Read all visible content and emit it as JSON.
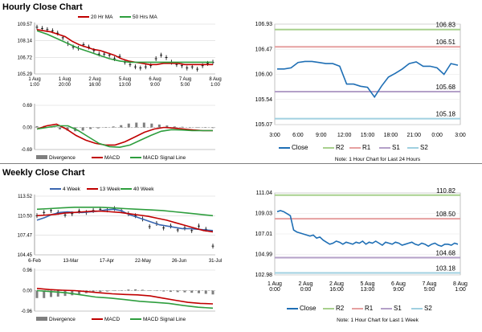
{
  "sections": {
    "hourly_title": "Hourly Close Chart",
    "weekly_title": "Weekly Close Chart"
  },
  "chart_data": [
    {
      "id": "hourly_price",
      "type": "line",
      "ylim": [
        105.29,
        109.57
      ],
      "yticks": [
        "109.57",
        "108.14",
        "106.72",
        "105.29"
      ],
      "xticks": [
        "1 Aug\n1:00",
        "1 Aug\n20:00",
        "2 Aug\n16:00",
        "5 Aug\n13:00",
        "6 Aug\n9:00",
        "7 Aug\n5:00",
        "8 Aug\n1:00"
      ],
      "legend": [
        "20 Hr MA",
        "50 Hrs MA"
      ],
      "series": [
        {
          "name": "Close",
          "color": "#000000",
          "style": "candles",
          "values": [
            109.3,
            109.2,
            109.1,
            109.0,
            108.8,
            108.4,
            107.9,
            107.6,
            107.5,
            107.8,
            107.6,
            107.3,
            107.0,
            107.0,
            106.9,
            106.6,
            106.8,
            106.3,
            106.1,
            105.9,
            105.8,
            105.9,
            106.0,
            106.6,
            106.9,
            106.7,
            106.3,
            106.1,
            106.0,
            105.8,
            105.9,
            105.7,
            106.0,
            106.2,
            106.3
          ]
        },
        {
          "name": "20 Hr MA",
          "color": "#c00000",
          "values": [
            109.1,
            109.0,
            108.9,
            108.7,
            108.5,
            108.1,
            107.8,
            107.6,
            107.4,
            107.3,
            107.1,
            106.9,
            106.6,
            106.4,
            106.3,
            106.2,
            106.1,
            106.1,
            106.2,
            106.2,
            106.2,
            106.1,
            106.1,
            106.1,
            106.1,
            106.1
          ]
        },
        {
          "name": "50 Hrs MA",
          "color": "#2e9e3e",
          "values": [
            109.0,
            108.7,
            108.3,
            107.9,
            107.5,
            107.2,
            106.9,
            106.6,
            106.4,
            106.3,
            106.3,
            106.3,
            106.3,
            106.3,
            106.3,
            106.3,
            106.3,
            106.3
          ]
        }
      ]
    },
    {
      "id": "hourly_macd",
      "type": "line",
      "ylim": [
        -0.69,
        0.69
      ],
      "yticks": [
        "0.69",
        "0.00",
        "-0.69"
      ],
      "legend": [
        "Divergence",
        "MACD",
        "MACD Signal Line"
      ],
      "series": [
        {
          "name": "Divergence",
          "color": "#7f7f7f",
          "style": "bars",
          "values": [
            0.04,
            0.05,
            0.03,
            -0.06,
            -0.1,
            -0.12,
            -0.1,
            -0.05,
            -0.03,
            0.0,
            0.03,
            0.07,
            0.12,
            0.15,
            0.15,
            0.12,
            0.09,
            0.06,
            0.03,
            0.02,
            0.01,
            0.0,
            -0.01,
            -0.02
          ]
        },
        {
          "name": "MACD",
          "color": "#c00000",
          "values": [
            -0.05,
            0.05,
            0.1,
            -0.05,
            -0.25,
            -0.4,
            -0.5,
            -0.55,
            -0.55,
            -0.45,
            -0.3,
            -0.15,
            -0.05,
            0.0,
            -0.02,
            -0.05,
            -0.08,
            -0.1,
            -0.1
          ]
        },
        {
          "name": "MACD Signal Line",
          "color": "#2e9e3e",
          "values": [
            -0.05,
            0.0,
            0.05,
            0.05,
            -0.1,
            -0.3,
            -0.5,
            -0.6,
            -0.62,
            -0.55,
            -0.4,
            -0.25,
            -0.12,
            -0.07,
            -0.08,
            -0.1,
            -0.1,
            -0.1
          ]
        }
      ]
    },
    {
      "id": "hourly_levels",
      "type": "line",
      "ylim": [
        105.07,
        106.93
      ],
      "yticks": [
        "106.93",
        "106.47",
        "106.00",
        "105.54",
        "105.07"
      ],
      "xticks": [
        "3:00",
        "6:00",
        "9:00",
        "12:00",
        "15:00",
        "18:00",
        "21:00",
        "0:00",
        "3:00"
      ],
      "legend": [
        "Close",
        "R2",
        "R1",
        "S1",
        "S2"
      ],
      "levels": [
        {
          "name": "R2",
          "value": 106.83,
          "label": "106.83",
          "color": "#a8d08d"
        },
        {
          "name": "R1",
          "value": 106.51,
          "label": "106.51",
          "color": "#e6a0a0"
        },
        {
          "name": "S1",
          "value": 105.68,
          "label": "105.68",
          "color": "#b4a0c8"
        },
        {
          "name": "S2",
          "value": 105.18,
          "label": "105.18",
          "color": "#a0d0e0"
        }
      ],
      "series": [
        {
          "name": "Close",
          "color": "#1f6fb5",
          "values": [
            106.1,
            106.1,
            106.12,
            106.22,
            106.24,
            106.24,
            106.22,
            106.2,
            106.2,
            106.15,
            105.82,
            105.82,
            105.78,
            105.76,
            105.58,
            105.78,
            105.95,
            106.02,
            106.1,
            106.2,
            106.23,
            106.15,
            106.15,
            106.12,
            106.0,
            106.2,
            106.17
          ]
        }
      ],
      "note": "Note: 1 Hour Chart for Last 24 Hours"
    },
    {
      "id": "weekly_price",
      "type": "line",
      "ylim": [
        104.45,
        113.52
      ],
      "yticks": [
        "113.52",
        "110.50",
        "107.47",
        "104.45"
      ],
      "xticks": [
        "6-Feb",
        "13-Mar",
        "17-Apr",
        "22-May",
        "26-Jun",
        "31-Jul"
      ],
      "legend": [
        "4 Week",
        "13 Week",
        "40 Week"
      ],
      "series": [
        {
          "name": "Close",
          "color": "#000000",
          "style": "candles",
          "values": [
            110.5,
            111.0,
            111.3,
            111.0,
            110.6,
            110.8,
            111.2,
            111.0,
            111.3,
            111.5,
            111.4,
            111.6,
            111.3,
            110.8,
            110.5,
            110.0,
            108.8,
            109.3,
            108.6,
            108.9,
            108.3,
            108.6,
            108.2,
            108.9,
            108.4,
            105.8
          ]
        },
        {
          "name": "4 Week",
          "color": "#3a66b0",
          "values": [
            109.8,
            110.2,
            110.7,
            111.0,
            111.1,
            111.0,
            111.0,
            111.1,
            111.2,
            111.4,
            111.5,
            111.3,
            110.7,
            110.3,
            109.9,
            109.5,
            109.1,
            108.9,
            108.7,
            108.5,
            108.5,
            108.4,
            108.3,
            108.2
          ]
        },
        {
          "name": "13 Week",
          "color": "#c00000",
          "values": [
            110.5,
            110.6,
            110.7,
            110.9,
            111.0,
            111.1,
            111.2,
            111.2,
            111.1,
            111.0,
            110.8,
            110.6,
            110.4,
            110.1,
            109.8,
            109.4,
            109.0,
            108.6,
            108.2,
            108.0
          ]
        },
        {
          "name": "40 Week",
          "color": "#2e9e3e",
          "values": [
            111.5,
            111.6,
            111.7,
            111.8,
            111.8,
            111.8,
            111.7,
            111.6,
            111.5,
            111.4,
            111.3,
            111.1,
            110.9,
            110.7,
            110.5
          ]
        }
      ]
    },
    {
      "id": "weekly_macd",
      "type": "line",
      "ylim": [
        -0.96,
        0.96
      ],
      "yticks": [
        "0.96",
        "0.00",
        "-0.96"
      ],
      "legend": [
        "Divergence",
        "MACD",
        "MACD Signal Line"
      ],
      "series": [
        {
          "name": "Divergence",
          "color": "#7f7f7f",
          "style": "bars",
          "values": [
            -0.35,
            -0.35,
            -0.3,
            -0.28,
            -0.25,
            -0.22,
            -0.18,
            -0.12,
            -0.08,
            -0.06,
            -0.04,
            -0.02,
            0.02,
            0.05,
            0.06,
            0.04,
            0.02,
            -0.02,
            -0.04,
            -0.06,
            -0.07,
            -0.08,
            -0.1,
            -0.12,
            -0.15,
            -0.18
          ]
        },
        {
          "name": "MACD",
          "color": "#c00000",
          "values": [
            0.1,
            0.05,
            0.02,
            0.0,
            -0.05,
            -0.1,
            -0.15,
            -0.18,
            -0.2,
            -0.25,
            -0.35,
            -0.45,
            -0.55,
            -0.6,
            -0.62
          ]
        },
        {
          "name": "MACD Signal Line",
          "color": "#2e9e3e",
          "values": [
            0.0,
            -0.05,
            -0.1,
            -0.2,
            -0.3,
            -0.35,
            -0.42,
            -0.5,
            -0.55,
            -0.6,
            -0.7,
            -0.78,
            -0.82
          ]
        }
      ]
    },
    {
      "id": "weekly_levels",
      "type": "line",
      "ylim": [
        102.98,
        111.04
      ],
      "yticks": [
        "111.04",
        "109.03",
        "107.01",
        "104.99",
        "102.98"
      ],
      "xticks": [
        "1 Aug\n0:00",
        "2 Aug\n0:00",
        "2 Aug\n16:00",
        "5 Aug\n13:00",
        "6 Aug\n9:00",
        "7 Aug\n5:00",
        "8 Aug\n1:00"
      ],
      "legend": [
        "Close",
        "R2",
        "R1",
        "S1",
        "S2"
      ],
      "levels": [
        {
          "name": "R2",
          "value": 110.82,
          "label": "110.82",
          "color": "#a8d08d"
        },
        {
          "name": "R1",
          "value": 108.5,
          "label": "108.50",
          "color": "#e6a0a0"
        },
        {
          "name": "S1",
          "value": 104.68,
          "label": "104.68",
          "color": "#b4a0c8"
        },
        {
          "name": "S2",
          "value": 103.18,
          "label": "103.18",
          "color": "#a0d0e0"
        }
      ],
      "series": [
        {
          "name": "Close",
          "color": "#1f6fb5",
          "values": [
            109.2,
            109.3,
            109.2,
            109.0,
            108.8,
            107.4,
            107.2,
            107.1,
            107.0,
            106.9,
            106.8,
            106.9,
            106.6,
            106.7,
            106.4,
            106.2,
            106.0,
            106.1,
            106.3,
            106.2,
            106.0,
            106.2,
            106.1,
            106.0,
            106.2,
            106.1,
            106.3,
            106.0,
            106.2,
            106.1,
            106.3,
            106.1,
            105.9,
            106.2,
            106.1,
            106.0,
            106.2,
            106.1,
            105.9,
            106.0,
            106.1,
            106.2,
            106.0,
            105.9,
            106.1,
            106.0,
            105.8,
            106.0,
            106.1,
            105.9,
            105.8,
            106.0,
            106.0,
            105.9,
            106.1,
            106.0
          ]
        }
      ],
      "note": "Note: 1 Hour Chart for Last 1 Week"
    }
  ]
}
